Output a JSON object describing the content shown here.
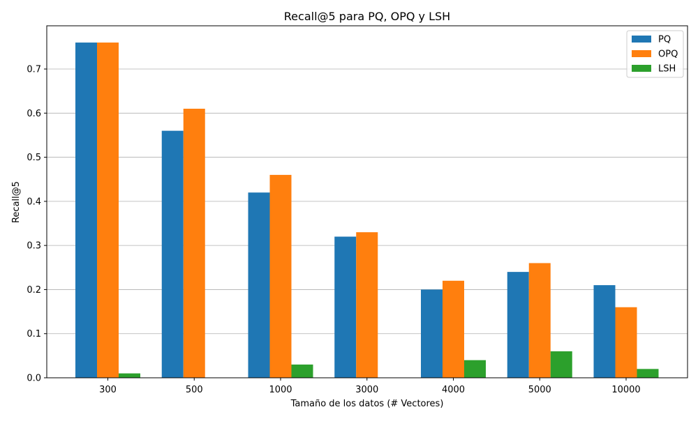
{
  "chart_data": {
    "type": "bar",
    "title": "Recall@5 para PQ, OPQ y LSH",
    "xlabel": "Tamaño de los datos (# Vectores)",
    "ylabel": "Recall@5",
    "categories": [
      "300",
      "500",
      "1000",
      "3000",
      "4000",
      "5000",
      "10000"
    ],
    "series": [
      {
        "name": "PQ",
        "color": "#1f77b4",
        "values": [
          0.76,
          0.56,
          0.42,
          0.32,
          0.2,
          0.24,
          0.21
        ]
      },
      {
        "name": "OPQ",
        "color": "#ff7f0e",
        "values": [
          0.76,
          0.61,
          0.46,
          0.33,
          0.22,
          0.26,
          0.16
        ]
      },
      {
        "name": "LSH",
        "color": "#2ca02c",
        "values": [
          0.01,
          0.0,
          0.03,
          0.0,
          0.04,
          0.06,
          0.02
        ]
      }
    ],
    "ylim": [
      0,
      0.798
    ],
    "yticks": [
      0.0,
      0.1,
      0.2,
      0.3,
      0.4,
      0.5,
      0.6,
      0.7
    ],
    "ytick_labels": [
      "0.0",
      "0.1",
      "0.2",
      "0.3",
      "0.4",
      "0.5",
      "0.6",
      "0.7"
    ],
    "grid": "y",
    "legend_position": "top-right"
  }
}
